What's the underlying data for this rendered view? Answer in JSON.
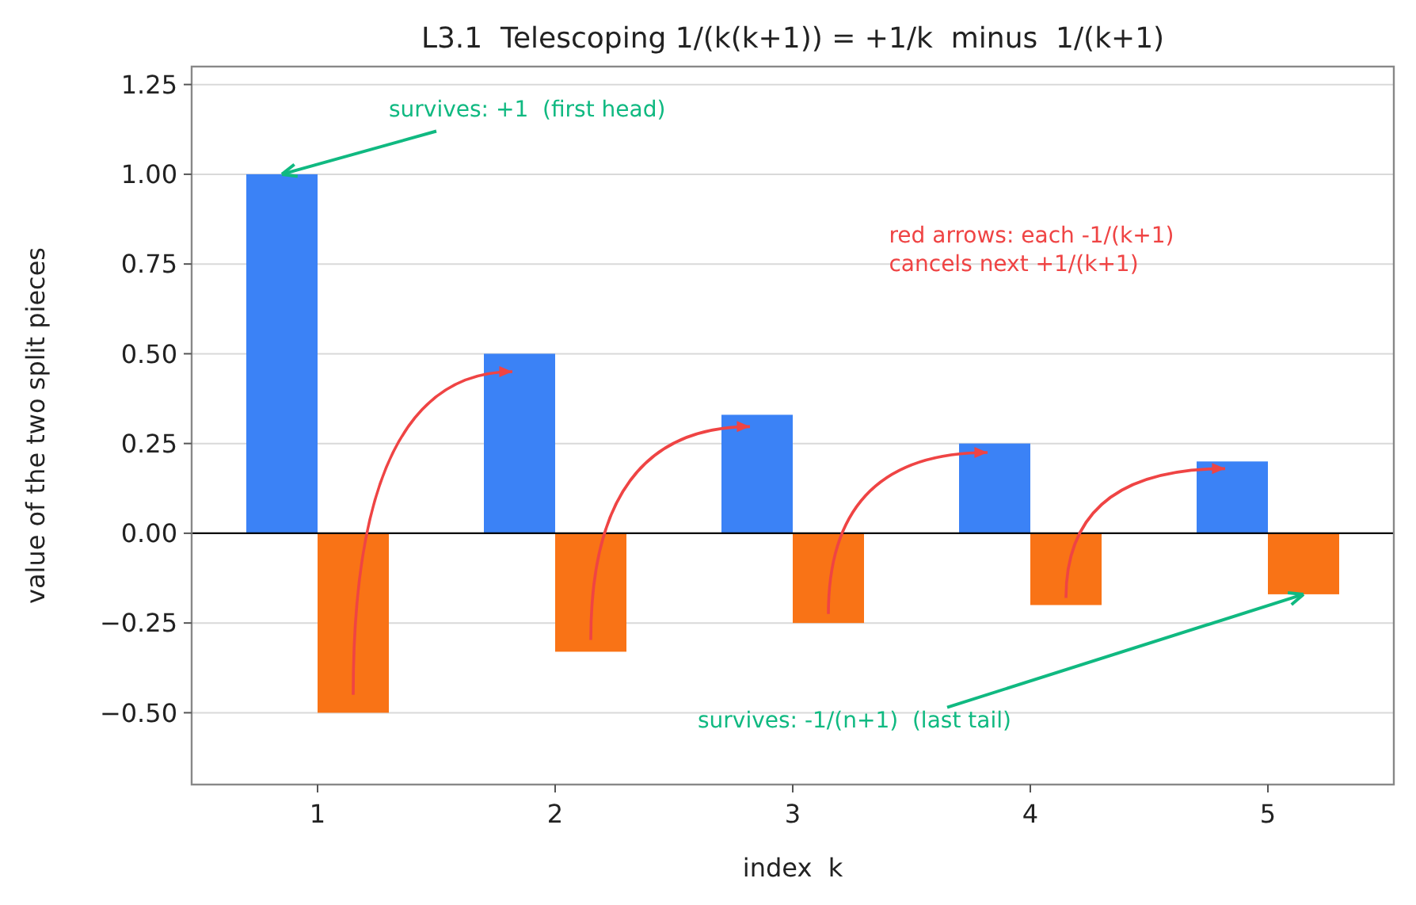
{
  "chart_data": {
    "type": "bar",
    "title": "L3.1  Telescoping 1/(k(k+1)) = +1/k  minus  1/(k+1)",
    "xlabel": "index  k",
    "ylabel": "value of the two split pieces",
    "x": [
      1,
      2,
      3,
      4,
      5
    ],
    "series": [
      {
        "color": "#3b82f6",
        "values": [
          1.0,
          0.5,
          0.33,
          0.25,
          0.2
        ]
      },
      {
        "color": "#f97316",
        "values": [
          -0.5,
          -0.33,
          -0.25,
          -0.2,
          -0.17
        ]
      }
    ],
    "xlim": [
      0.47,
      5.53
    ],
    "xticks": [
      1,
      2,
      3,
      4,
      5
    ],
    "ylim": [
      -0.7,
      1.3
    ],
    "yticks": [
      {
        "value": -0.5,
        "label": "−0.50"
      },
      {
        "value": -0.25,
        "label": "−0.25"
      },
      {
        "value": 0,
        "label": "0.00"
      },
      {
        "value": 0.25,
        "label": "0.25"
      },
      {
        "value": 0.5,
        "label": "0.50"
      },
      {
        "value": 0.75,
        "label": "0.75"
      },
      {
        "value": 1,
        "label": "1.00"
      },
      {
        "value": 1.25,
        "label": "1.25"
      }
    ],
    "grid": "y",
    "ref_lines": [
      {
        "axis": "y",
        "value": 0,
        "color": "#000000"
      }
    ],
    "annotations": [
      {
        "text": "survives: +1  (first head)",
        "x": 0.85,
        "y": 1.0
      },
      {
        "text": "survives: -1/(n+1)  (last tail)",
        "x": 5.15,
        "y": -0.17
      },
      "red arrows: each -1/(k+1)\ncancels next +1/(k+1)"
    ]
  }
}
